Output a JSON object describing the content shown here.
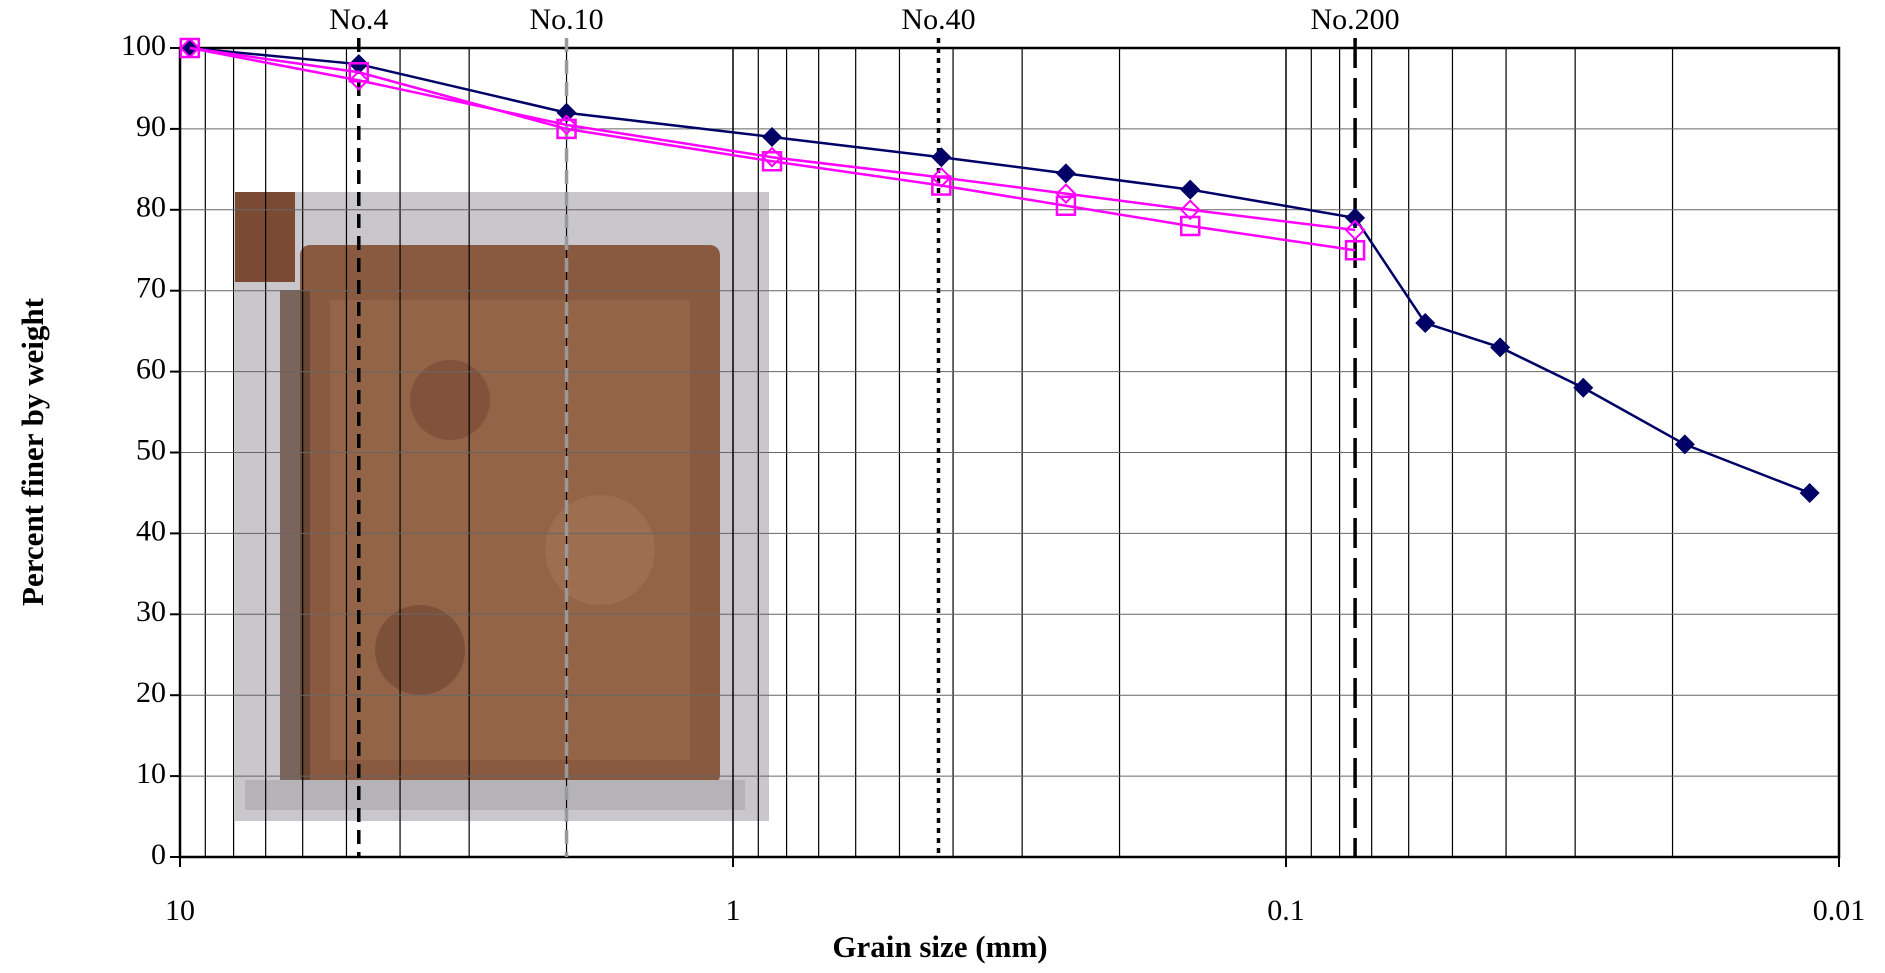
{
  "chart_data": {
    "type": "line",
    "x_label": "Grain size (mm)",
    "y_label": "Percent finer by weight",
    "xscale": "log",
    "x_reversed": true,
    "xlim": [
      10,
      0.01
    ],
    "ylim": [
      0,
      100
    ],
    "xticks": [
      10,
      1,
      0.1,
      0.01
    ],
    "xminorticks": [
      9,
      8,
      7,
      6,
      5,
      4,
      3,
      2,
      0.9,
      0.8,
      0.7,
      0.6,
      0.5,
      0.4,
      0.3,
      0.2,
      0.09,
      0.08,
      0.07,
      0.06,
      0.05,
      0.04,
      0.03,
      0.02
    ],
    "yticks": [
      0,
      10,
      20,
      30,
      40,
      50,
      60,
      70,
      80,
      90,
      100
    ],
    "grid": true,
    "sieves": [
      {
        "label": "No.4",
        "x": 4.75,
        "style": "dashed",
        "color": "#000000"
      },
      {
        "label": "No.10",
        "x": 2.0,
        "style": "dashed",
        "color": "#999999"
      },
      {
        "label": "No.40",
        "x": 0.425,
        "style": "dotted",
        "color": "#000000"
      },
      {
        "label": "No.200",
        "x": 0.075,
        "style": "longdash",
        "color": "#000000"
      }
    ],
    "series": [
      {
        "marker": "diamond",
        "color": "#000066",
        "x": [
          9.6,
          4.75,
          2.0,
          0.85,
          0.42,
          0.25,
          0.149,
          0.075,
          0.056,
          0.041,
          0.029,
          0.019,
          0.0113
        ],
        "values": [
          100,
          98,
          92,
          89,
          86.5,
          84.5,
          82.5,
          79,
          66,
          63,
          58,
          51,
          45
        ]
      },
      {
        "marker": "open-diamond",
        "color": "#ff00ff",
        "x": [
          9.6,
          4.75,
          2.0,
          0.85,
          0.42,
          0.25,
          0.149,
          0.075
        ],
        "values": [
          100,
          96,
          90.5,
          86.5,
          84,
          82,
          80,
          77.5
        ]
      },
      {
        "marker": "open-square",
        "color": "#ff00ff",
        "x": [
          9.6,
          4.75,
          2.0,
          0.85,
          0.42,
          0.25,
          0.149,
          0.075
        ],
        "values": [
          100,
          97,
          90,
          86,
          83,
          80.5,
          78,
          75
        ]
      }
    ]
  }
}
